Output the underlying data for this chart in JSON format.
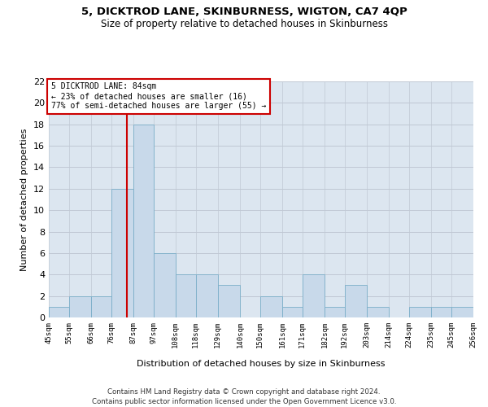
{
  "title": "5, DICKTROD LANE, SKINBURNESS, WIGTON, CA7 4QP",
  "subtitle": "Size of property relative to detached houses in Skinburness",
  "xlabel": "Distribution of detached houses by size in Skinburness",
  "ylabel": "Number of detached properties",
  "footer_line1": "Contains HM Land Registry data © Crown copyright and database right 2024.",
  "footer_line2": "Contains public sector information licensed under the Open Government Licence v3.0.",
  "annotation_line1": "5 DICKTROD LANE: 84sqm",
  "annotation_line2": "← 23% of detached houses are smaller (16)",
  "annotation_line3": "77% of semi-detached houses are larger (55) →",
  "property_size": 84,
  "bar_color": "#c8d9ea",
  "bar_edge_color": "#7aaec8",
  "redline_color": "#cc0000",
  "annotation_box_color": "#cc0000",
  "grid_color": "#c0c8d4",
  "background_color": "#dce6f0",
  "bins": [
    45,
    55,
    66,
    76,
    87,
    97,
    108,
    118,
    129,
    140,
    150,
    161,
    171,
    182,
    192,
    203,
    214,
    224,
    235,
    245,
    256
  ],
  "counts": [
    1,
    2,
    2,
    12,
    18,
    6,
    4,
    4,
    3,
    0,
    2,
    1,
    4,
    1,
    3,
    1,
    0,
    1,
    1,
    1
  ],
  "ylim": [
    0,
    22
  ],
  "yticks": [
    0,
    2,
    4,
    6,
    8,
    10,
    12,
    14,
    16,
    18,
    20,
    22
  ]
}
